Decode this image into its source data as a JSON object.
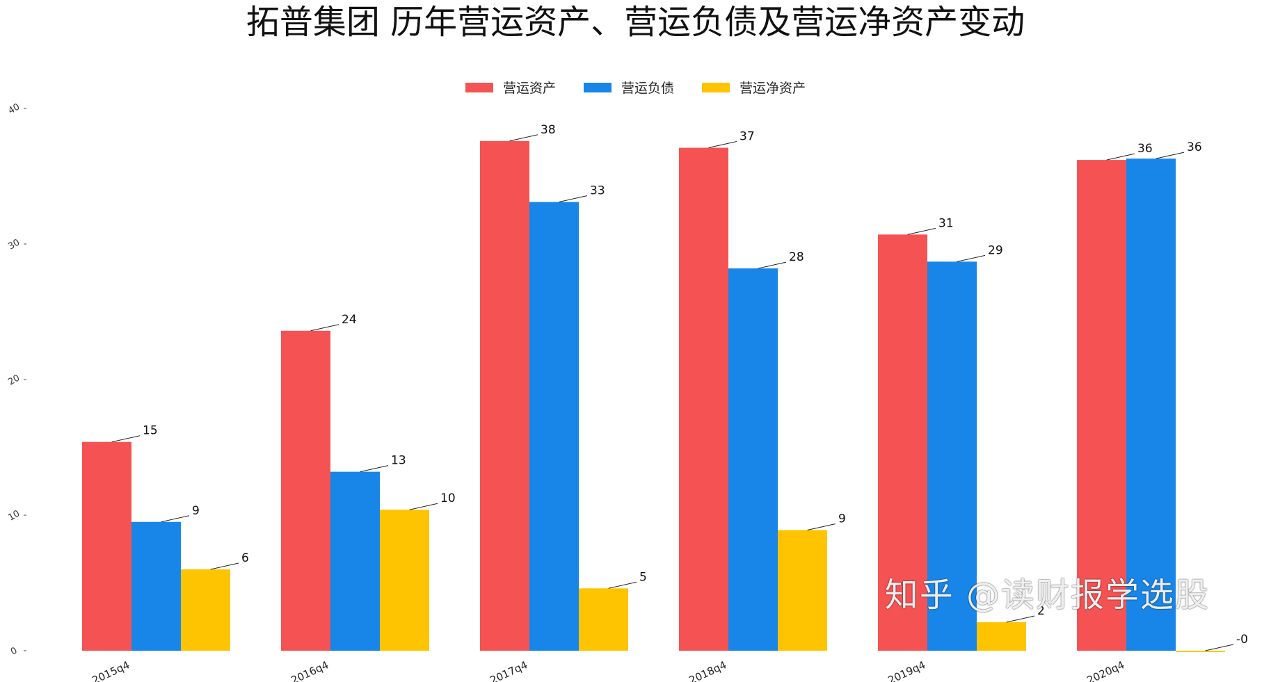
{
  "chart_data": {
    "type": "bar",
    "title": "拓普集团 历年营运资产、营运负债及营运净资产变动",
    "categories": [
      "2015q4",
      "2016q4",
      "2017q4",
      "2018q4",
      "2019q4",
      "2020q4"
    ],
    "series": [
      {
        "name": "营运资产",
        "color": "#f55353",
        "values": [
          15.4,
          23.6,
          37.6,
          37.1,
          30.7,
          36.2
        ],
        "labels": [
          "15",
          "24",
          "38",
          "37",
          "31",
          "36"
        ]
      },
      {
        "name": "营运负债",
        "color": "#1886e8",
        "values": [
          9.5,
          13.2,
          33.1,
          28.2,
          28.7,
          36.3
        ],
        "labels": [
          "9",
          "13",
          "33",
          "28",
          "29",
          "36"
        ]
      },
      {
        "name": "营运净资产",
        "color": "#fec401",
        "values": [
          6.0,
          10.4,
          4.6,
          8.9,
          2.1,
          -0.1
        ],
        "labels": [
          "6",
          "10",
          "5",
          "9",
          "2",
          "-0"
        ]
      }
    ],
    "yticks": [
      "0",
      "10",
      "20",
      "30",
      "40"
    ],
    "ylim": [
      0,
      40
    ],
    "grid": false,
    "legend_position": "top-center"
  },
  "watermark": "知乎 @读财报学选股"
}
